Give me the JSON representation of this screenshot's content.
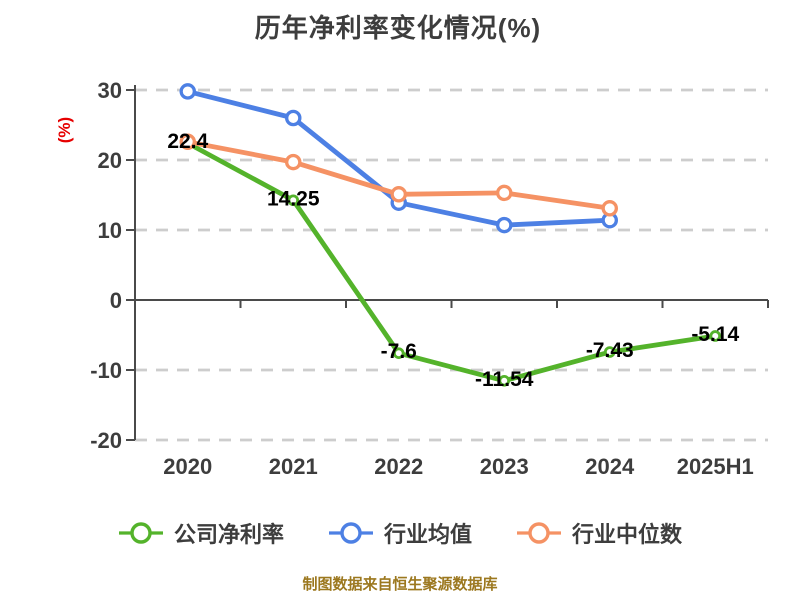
{
  "title": "历年净利率变化情况(%)",
  "footer": "制图数据来自恒生聚源数据库",
  "colors": {
    "company": "#54b32b",
    "industry_avg": "#4d80e4",
    "industry_median": "#f59264",
    "grid": "#cdcdcd",
    "axis": "#4a4a4a",
    "tick_label": "#3d3d3d",
    "data_label": "#000000",
    "y_unit_label": "#e60000",
    "footer_text": "#9c781f",
    "background": "#ffffff"
  },
  "chart_data": {
    "type": "line",
    "title": "历年净利率变化情况(%)",
    "ylabel": "(%)",
    "categories": [
      "2020",
      "2021",
      "2022",
      "2023",
      "2024",
      "2025H1"
    ],
    "series": [
      {
        "name": "公司净利率",
        "color": "#54b32b",
        "values": [
          22.4,
          14.25,
          -7.6,
          -11.54,
          -7.43,
          -5.14
        ],
        "labels": [
          "22.4",
          "14.25",
          "-7.6",
          "-11.54",
          "-7.43",
          "-5.14"
        ]
      },
      {
        "name": "行业均值",
        "color": "#4d80e4",
        "values": [
          29.8,
          26.0,
          13.9,
          10.7,
          11.4,
          null
        ],
        "labels": null
      },
      {
        "name": "行业中位数",
        "color": "#f59264",
        "values": [
          22.6,
          19.7,
          15.1,
          15.3,
          13.1,
          null
        ],
        "labels": null
      }
    ],
    "ylim": [
      -20,
      30
    ],
    "yticks": [
      30,
      20,
      10,
      0,
      -10,
      -20
    ],
    "grid": true,
    "grid_style": "dashed",
    "legend_position": "bottom",
    "x_axis_on_zero": true
  },
  "legend": {
    "items": [
      {
        "label": "公司净利率",
        "color": "#54b32b"
      },
      {
        "label": "行业均值",
        "color": "#4d80e4"
      },
      {
        "label": "行业中位数",
        "color": "#f59264"
      }
    ]
  }
}
